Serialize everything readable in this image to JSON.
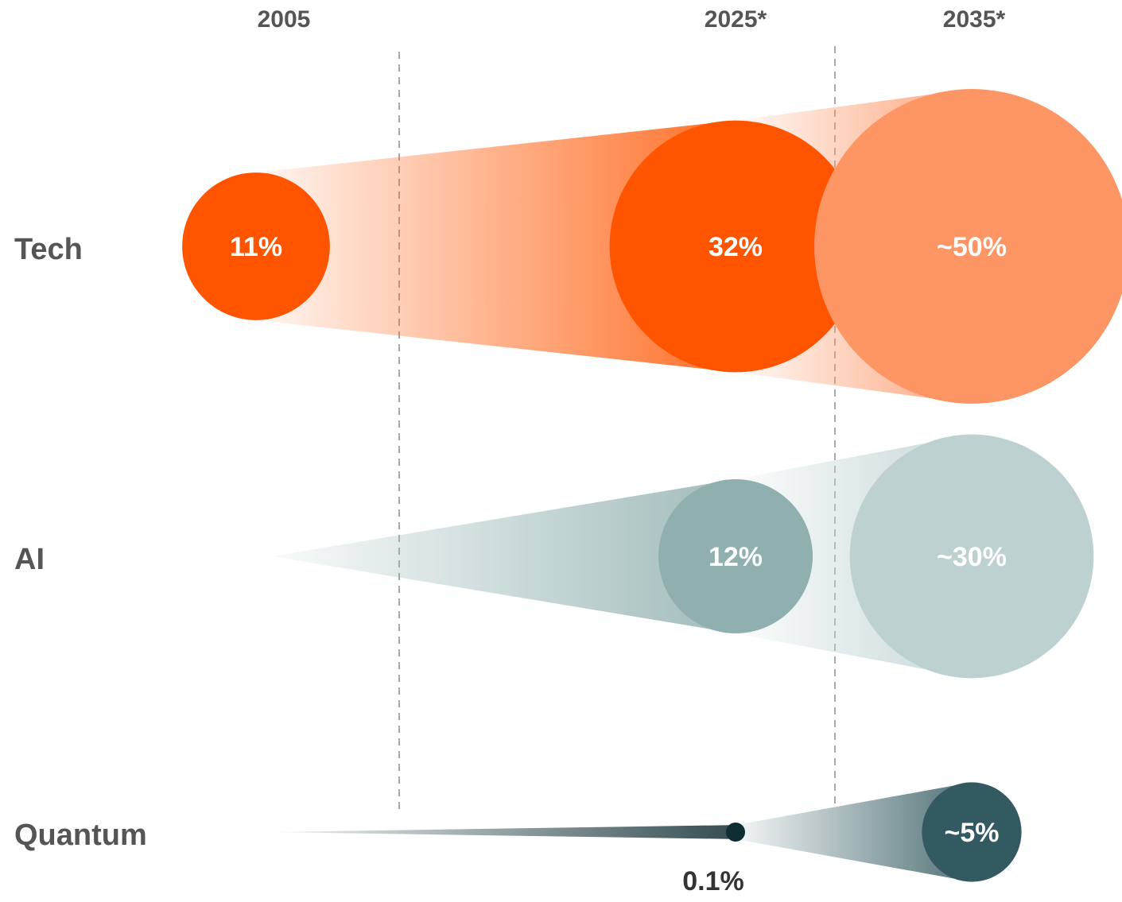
{
  "chart_data": {
    "type": "bubble",
    "categories": [
      "2005",
      "2025*",
      "2035*"
    ],
    "series": [
      {
        "name": "Tech",
        "values": [
          11,
          32,
          50
        ],
        "value_labels": [
          "11%",
          "32%",
          "~50%"
        ],
        "colors": [
          "#ff5500",
          "#ff5500",
          "#fd9565"
        ]
      },
      {
        "name": "AI",
        "values": [
          null,
          12,
          30
        ],
        "value_labels": [
          null,
          "12%",
          "~30%"
        ],
        "colors": [
          null,
          "#8fb0ae",
          "#bcd1d0"
        ]
      },
      {
        "name": "Quantum",
        "values": [
          null,
          0.1,
          5
        ],
        "value_labels": [
          null,
          "0.1%",
          "~5%"
        ],
        "colors": [
          null,
          "#0f2e33",
          "#335a60"
        ]
      }
    ]
  }
}
